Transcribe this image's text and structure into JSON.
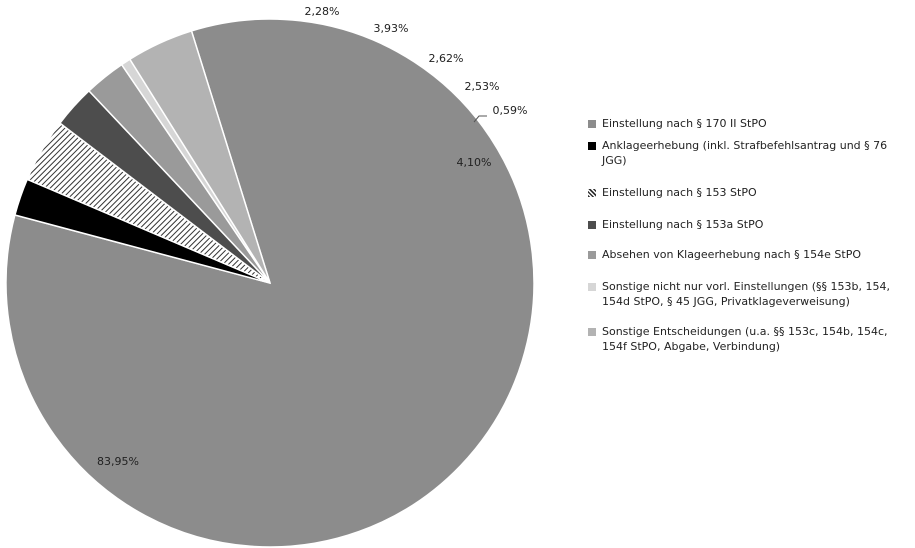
{
  "chart_data": {
    "type": "pie",
    "title": "",
    "slices": [
      {
        "label": "Einstellung nach § 170 II StPO",
        "value": 83.95,
        "value_label": "83,95%",
        "color": "#8c8c8c",
        "pattern": "solid"
      },
      {
        "label": "Anklageerhebung (inkl. Strafbefehlsantrag und § 76 JGG)",
        "value": 2.28,
        "value_label": "2,28%",
        "color": "#000000",
        "pattern": "solid"
      },
      {
        "label": "Einstellung nach § 153 StPO",
        "value": 3.93,
        "value_label": "3,93%",
        "color": "#555555",
        "pattern": "hatch"
      },
      {
        "label": "Einstellung nach § 153a StPO",
        "value": 2.62,
        "value_label": "2,62%",
        "color": "#4d4d4d",
        "pattern": "solid"
      },
      {
        "label": "Absehen von Klageerhebung nach § 154e StPO",
        "value": 2.53,
        "value_label": "2,53%",
        "color": "#9a9a9a",
        "pattern": "solid"
      },
      {
        "label": "Sonstige nicht nur vorl. Einstellungen (§§ 153b, 154, 154d StPO, § 45 JGG, Privatklageverweisung)",
        "value": 0.59,
        "value_label": "0,59%",
        "color": "#d6d6d6",
        "pattern": "solid"
      },
      {
        "label": "Sonstige Entscheidungen (u.a. §§ 153c, 154b, 154c, 154f StPO, Abgabe, Verbindung)",
        "value": 4.1,
        "value_label": "4,10%",
        "color": "#b3b3b3",
        "pattern": "solid"
      }
    ],
    "legend_position": "right"
  }
}
